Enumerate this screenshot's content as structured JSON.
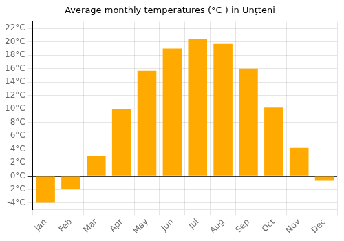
{
  "chart_data": {
    "type": "bar",
    "title": "Average monthly temperatures (°C ) in Unţteni",
    "categories": [
      "Jan",
      "Feb",
      "Mar",
      "Apr",
      "May",
      "Jun",
      "Jul",
      "Aug",
      "Sep",
      "Oct",
      "Nov",
      "Dec"
    ],
    "values": [
      -4.0,
      -2.0,
      3.0,
      10.0,
      15.7,
      19.0,
      20.5,
      19.7,
      16.0,
      10.2,
      4.2,
      -0.7
    ],
    "color": "#FFAA00",
    "ylim": [
      -5,
      23
    ],
    "yticks": [
      {
        "value": -4,
        "label": "-4°C"
      },
      {
        "value": -2,
        "label": "-2°C"
      },
      {
        "value": 0,
        "label": "0°C"
      },
      {
        "value": 2,
        "label": "2°C"
      },
      {
        "value": 4,
        "label": "4°C"
      },
      {
        "value": 6,
        "label": "6°C"
      },
      {
        "value": 8,
        "label": "8°C"
      },
      {
        "value": 10,
        "label": "10°C"
      },
      {
        "value": 12,
        "label": "12°C"
      },
      {
        "value": 14,
        "label": "14°C"
      },
      {
        "value": 16,
        "label": "16°C"
      },
      {
        "value": 18,
        "label": "18°C"
      },
      {
        "value": 20,
        "label": "20°C"
      },
      {
        "value": 22,
        "label": "22°C"
      }
    ],
    "grid": true
  }
}
